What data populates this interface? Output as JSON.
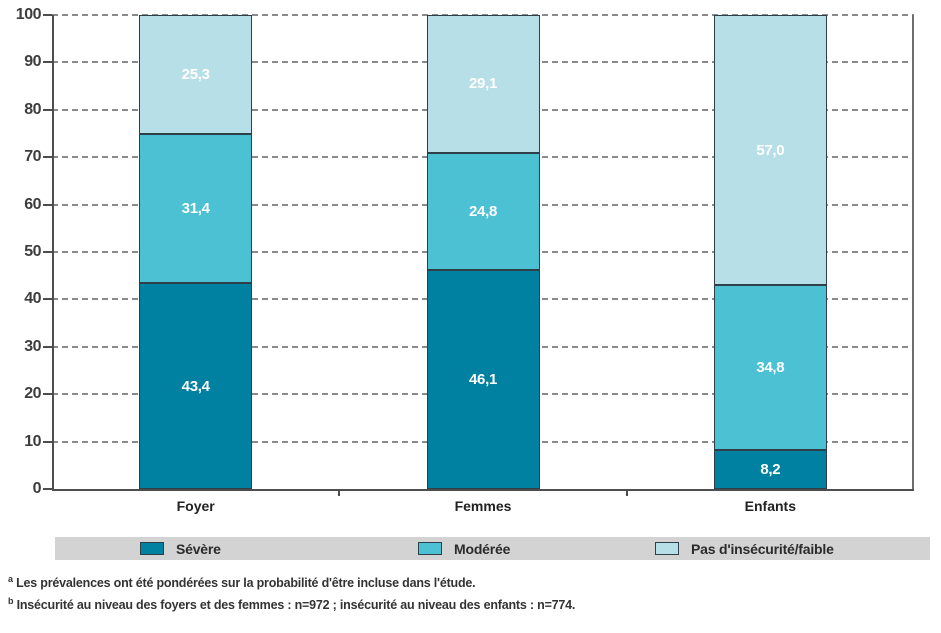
{
  "chart_data": {
    "type": "bar",
    "stacked": true,
    "title": "",
    "xlabel": "",
    "ylabel": "",
    "categories": [
      "Foyer",
      "Femmes",
      "Enfants"
    ],
    "series": [
      {
        "name": "Sévère",
        "color": "#0081a2",
        "values": [
          43.4,
          46.1,
          8.2
        ],
        "value_labels": [
          "43,4",
          "46,1",
          "8,2"
        ]
      },
      {
        "name": "Modérée",
        "color": "#4cc1d4",
        "values": [
          31.4,
          24.8,
          34.8
        ],
        "value_labels": [
          "31,4",
          "24,8",
          "34,8"
        ]
      },
      {
        "name": "Pas d'insécurité/faible",
        "color": "#b7dfe8",
        "values": [
          25.3,
          29.1,
          57.0
        ],
        "value_labels": [
          "25,3",
          "29,1",
          "57,0"
        ]
      }
    ],
    "ylim": [
      0,
      100
    ],
    "yticks": [
      0,
      10,
      20,
      30,
      40,
      50,
      60,
      70,
      80,
      90,
      100
    ],
    "grid": "horizontal-dashed",
    "legend_position": "bottom"
  },
  "legend": {
    "background": "#d3d3d3",
    "items": [
      {
        "label": "Sévère",
        "color": "#0081a2"
      },
      {
        "label": "Modérée",
        "color": "#4cc1d4"
      },
      {
        "label": "Pas d'insécurité/faible",
        "color": "#b7dfe8"
      }
    ]
  },
  "footnotes": [
    {
      "marker": "a",
      "text": "Les prévalences ont été pondérées sur la probabilité d'être incluse dans l'étude."
    },
    {
      "marker": "b",
      "text": "Insécurité au niveau des foyers et des femmes : n=972 ; insécurité au niveau des enfants : n=774."
    }
  ],
  "colors": {
    "axis": "#4d4d4d",
    "gridline": "#8a8a8a",
    "segment_border": "#2e3f49",
    "value_label_text": "#ffffff"
  }
}
